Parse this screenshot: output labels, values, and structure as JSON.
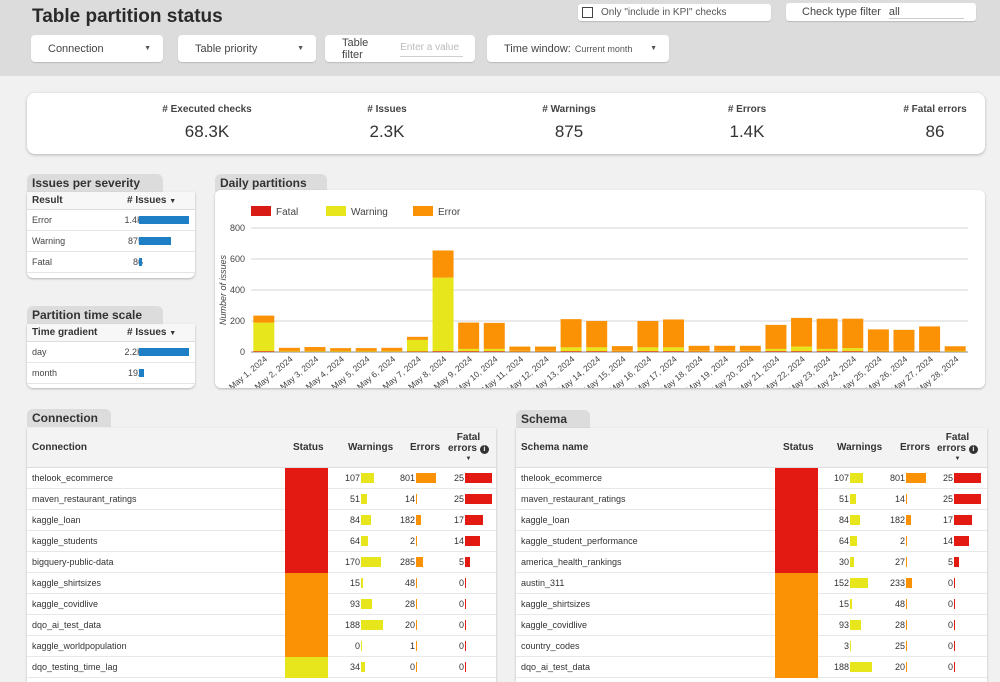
{
  "header": {
    "title": "Table partition status",
    "kpi_checkbox_label": "Only \"include in KPI\" checks",
    "check_type_label": "Check type filter",
    "check_type_value": "all",
    "filters": {
      "connection": "Connection",
      "table_priority": "Table priority",
      "table_filter": "Table filter",
      "table_filter_placeholder": "Enter a value",
      "time_window": "Time window:",
      "time_window_value": "Current month"
    }
  },
  "summary": [
    {
      "label": "# Executed checks",
      "value": "68.3K"
    },
    {
      "label": "# Issues",
      "value": "2.3K"
    },
    {
      "label": "# Warnings",
      "value": "875"
    },
    {
      "label": "# Errors",
      "value": "1.4K"
    },
    {
      "label": "# Fatal errors",
      "value": "86"
    }
  ],
  "severity": {
    "title": "Issues per severity level",
    "col1": "Result",
    "col2": "# Issues",
    "rows": [
      {
        "label": "Error",
        "value": "1.4K",
        "fraction": 1.0
      },
      {
        "label": "Warning",
        "value": "875",
        "fraction": 0.63
      },
      {
        "label": "Fatal",
        "value": "86",
        "fraction": 0.06
      }
    ]
  },
  "time_scale": {
    "title": "Partition time scale",
    "col1": "Time gradient",
    "col2": "# Issues",
    "rows": [
      {
        "label": "day",
        "value": "2.2K",
        "fraction": 1.0
      },
      {
        "label": "month",
        "value": "192",
        "fraction": 0.09
      }
    ]
  },
  "chart_title": "Daily partitions",
  "chart_data": {
    "type": "bar",
    "stacked": true,
    "title": "",
    "xlabel": "",
    "ylabel": "Number of issues",
    "ylim": [
      0,
      800
    ],
    "yticks": [
      0,
      200,
      400,
      600,
      800
    ],
    "legend_position": "top-left",
    "categories": [
      "May 1, 2024",
      "May 2, 2024",
      "May 3, 2024",
      "May 4, 2024",
      "May 5, 2024",
      "May 6, 2024",
      "May 7, 2024",
      "May 8, 2024",
      "May 9, 2024",
      "May 10, 2024",
      "May 11, 2024",
      "May 12, 2024",
      "May 13, 2024",
      "May 14, 2024",
      "May 15, 2024",
      "May 16, 2024",
      "May 17, 2024",
      "May 18, 2024",
      "May 19, 2024",
      "May 20, 2024",
      "May 21, 2024",
      "May 22, 2024",
      "May 23, 2024",
      "May 24, 2024",
      "May 25, 2024",
      "May 26, 2024",
      "May 27, 2024",
      "May 28, 2024"
    ],
    "series": [
      {
        "name": "Fatal",
        "color": "#d81b14",
        "values": [
          5,
          2,
          2,
          2,
          2,
          2,
          3,
          5,
          5,
          5,
          3,
          3,
          5,
          5,
          3,
          5,
          5,
          3,
          3,
          3,
          5,
          5,
          5,
          5,
          3,
          3,
          3,
          2
        ]
      },
      {
        "name": "Warning",
        "color": "#e7e61c",
        "values": [
          185,
          5,
          5,
          5,
          5,
          5,
          75,
          475,
          15,
          15,
          5,
          5,
          25,
          25,
          5,
          25,
          25,
          5,
          5,
          5,
          15,
          30,
          15,
          20,
          5,
          5,
          5,
          5
        ]
      },
      {
        "name": "Error",
        "color": "#fb9206",
        "values": [
          45,
          20,
          25,
          18,
          18,
          20,
          20,
          175,
          170,
          168,
          27,
          27,
          182,
          170,
          30,
          170,
          180,
          32,
          32,
          32,
          155,
          185,
          195,
          190,
          138,
          135,
          157,
          30
        ]
      }
    ]
  },
  "connection_table": {
    "title": "Connection",
    "headers": {
      "name": "Connection",
      "status": "Status",
      "warnings": "Warnings",
      "errors": "Errors",
      "fatal": "Fatal",
      "fatal2": "errors"
    },
    "rows": [
      {
        "name": "thelook_ecommerce",
        "status": "#e31a12",
        "warnings": 107,
        "errors": 801,
        "fatal": 25
      },
      {
        "name": "maven_restaurant_ratings",
        "status": "#e31a12",
        "warnings": 51,
        "errors": 14,
        "fatal": 25
      },
      {
        "name": "kaggle_loan",
        "status": "#e31a12",
        "warnings": 84,
        "errors": 182,
        "fatal": 17
      },
      {
        "name": "kaggle_students",
        "status": "#e31a12",
        "warnings": 64,
        "errors": 2,
        "fatal": 14
      },
      {
        "name": "bigquery-public-data",
        "status": "#e31a12",
        "warnings": 170,
        "errors": 285,
        "fatal": 5
      },
      {
        "name": "kaggle_shirtsizes",
        "status": "#fb9206",
        "warnings": 15,
        "errors": 48,
        "fatal": 0
      },
      {
        "name": "kaggle_covidlive",
        "status": "#fb9206",
        "warnings": 93,
        "errors": 28,
        "fatal": 0
      },
      {
        "name": "dqo_ai_test_data",
        "status": "#fb9206",
        "warnings": 188,
        "errors": 20,
        "fatal": 0
      },
      {
        "name": "kaggle_worldpopulation",
        "status": "#fb9206",
        "warnings": 0,
        "errors": 1,
        "fatal": 0
      },
      {
        "name": "dqo_testing_time_lag",
        "status": "#e7e61c",
        "warnings": 34,
        "errors": 0,
        "fatal": 0
      }
    ]
  },
  "schema_table": {
    "title": "Schema",
    "headers": {
      "name": "Schema name",
      "status": "Status",
      "warnings": "Warnings",
      "errors": "Errors",
      "fatal": "Fatal",
      "fatal2": "errors"
    },
    "rows": [
      {
        "name": "thelook_ecommerce",
        "status": "#e31a12",
        "warnings": 107,
        "errors": 801,
        "fatal": 25
      },
      {
        "name": "maven_restaurant_ratings",
        "status": "#e31a12",
        "warnings": 51,
        "errors": 14,
        "fatal": 25
      },
      {
        "name": "kaggle_loan",
        "status": "#e31a12",
        "warnings": 84,
        "errors": 182,
        "fatal": 17
      },
      {
        "name": "kaggle_student_performance",
        "status": "#e31a12",
        "warnings": 64,
        "errors": 2,
        "fatal": 14
      },
      {
        "name": "america_health_rankings",
        "status": "#e31a12",
        "warnings": 30,
        "errors": 27,
        "fatal": 5
      },
      {
        "name": "austin_311",
        "status": "#fb9206",
        "warnings": 152,
        "errors": 233,
        "fatal": 0
      },
      {
        "name": "kaggle_shirtsizes",
        "status": "#fb9206",
        "warnings": 15,
        "errors": 48,
        "fatal": 0
      },
      {
        "name": "kaggle_covidlive",
        "status": "#fb9206",
        "warnings": 93,
        "errors": 28,
        "fatal": 0
      },
      {
        "name": "country_codes",
        "status": "#fb9206",
        "warnings": 3,
        "errors": 25,
        "fatal": 0
      },
      {
        "name": "dqo_ai_test_data",
        "status": "#fb9206",
        "warnings": 188,
        "errors": 20,
        "fatal": 0
      }
    ]
  }
}
